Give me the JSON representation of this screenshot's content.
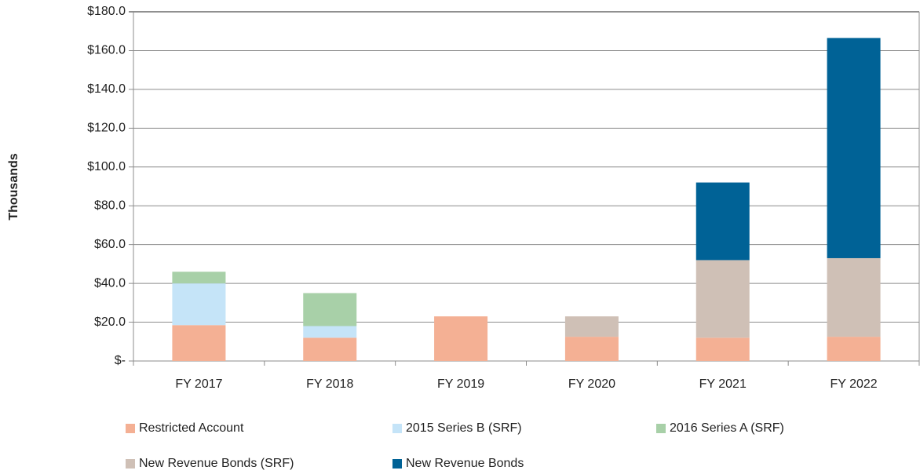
{
  "chart_data": {
    "type": "stacked_bar",
    "y_label": "Thousands",
    "categories": [
      "FY 2017",
      "FY 2018",
      "FY 2019",
      "FY 2020",
      "FY 2021",
      "FY 2022"
    ],
    "series": [
      {
        "name": "Restricted Account",
        "color": "#f4b094",
        "values": [
          18.5,
          12,
          23,
          12.5,
          12,
          12.5
        ]
      },
      {
        "name": "2015 Series B (SRF)",
        "color": "#c5e4f8",
        "values": [
          21.5,
          6,
          null,
          null,
          null,
          null
        ]
      },
      {
        "name": "2016 Series A (SRF)",
        "color": "#a8d0a8",
        "values": [
          6,
          17,
          null,
          null,
          null,
          null
        ]
      },
      {
        "name": "New Revenue Bonds (SRF)",
        "color": "#cfc0b6",
        "values": [
          null,
          null,
          null,
          10.5,
          40,
          40.5
        ]
      },
      {
        "name": "New Revenue Bonds",
        "color": "#006296",
        "values": [
          null,
          null,
          null,
          null,
          40,
          113.5
        ]
      }
    ],
    "ylim": [
      0,
      180
    ],
    "yticks": [
      {
        "value": 0,
        "label": "$-"
      },
      {
        "value": 20,
        "label": "$20.0"
      },
      {
        "value": 40,
        "label": "$40.0"
      },
      {
        "value": 60,
        "label": "$60.0"
      },
      {
        "value": 80,
        "label": "$80.0"
      },
      {
        "value": 100,
        "label": "$100.0"
      },
      {
        "value": 120,
        "label": "$120.0"
      },
      {
        "value": 140,
        "label": "$140.0"
      },
      {
        "value": 160,
        "label": "$160.0"
      },
      {
        "value": 180,
        "label": "$180.0"
      }
    ],
    "grid": true
  }
}
